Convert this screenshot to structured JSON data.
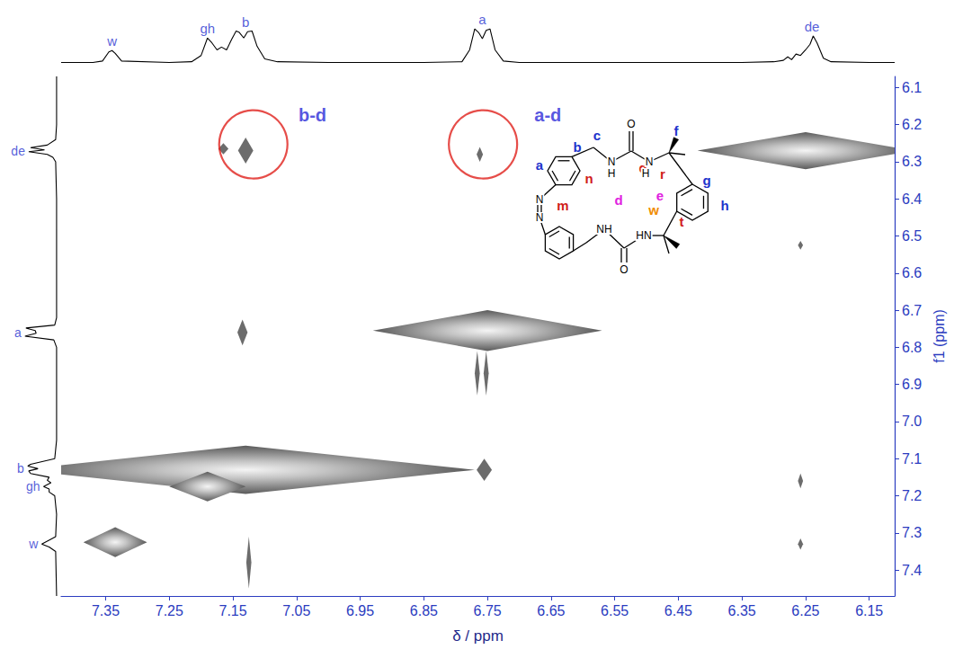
{
  "chart_data": {
    "type": "nmr2d",
    "x_label": "δ / ppm",
    "y_label": "f1 (ppm)",
    "xlim": [
      7.42,
      6.11
    ],
    "xticks": [
      7.35,
      7.25,
      7.15,
      7.05,
      6.95,
      6.85,
      6.75,
      6.65,
      6.55,
      6.45,
      6.35,
      6.25,
      6.15
    ],
    "ylim": [
      7.47,
      6.07
    ],
    "yticks": [
      6.1,
      6.2,
      6.3,
      6.4,
      6.5,
      6.6,
      6.7,
      6.8,
      6.9,
      {
        "value": 7,
        "label": "7.0"
      },
      7.1,
      7.2,
      7.3,
      7.4
    ],
    "grid": false,
    "peaks": {
      "x": [
        7.335,
        7.13,
        7.19,
        6.75,
        6.25,
        7.13,
        7.165,
        6.762,
        7.135,
        6.755,
        6.258,
        6.258,
        6.258,
        7.125,
        6.766,
        6.752
      ],
      "y": [
        7.325,
        7.13,
        7.175,
        6.755,
        6.27,
        6.27,
        6.265,
        6.28,
        6.76,
        7.13,
        6.525,
        7.16,
        7.33,
        7.38,
        6.87,
        6.87
      ],
      "x_width": [
        0.05,
        0.36,
        0.06,
        0.18,
        0.17,
        0.012,
        0.008,
        0.005,
        0.008,
        0.012,
        0.004,
        0.004,
        0.004,
        0.004,
        0.004,
        0.004
      ],
      "y_width": [
        0.04,
        0.065,
        0.04,
        0.055,
        0.05,
        0.035,
        0.015,
        0.02,
        0.035,
        0.03,
        0.012,
        0.02,
        0.015,
        0.07,
        0.06,
        0.06
      ]
    },
    "top_trace": {
      "x": [
        7.42,
        7.37,
        7.355,
        7.345,
        7.34,
        7.335,
        7.325,
        7.25,
        7.215,
        7.2,
        7.19,
        7.183,
        7.175,
        7.168,
        7.16,
        7.152,
        7.145,
        7.14,
        7.133,
        7.127,
        7.12,
        7.112,
        7.1,
        7.08,
        7.0,
        6.85,
        6.79,
        6.778,
        6.77,
        6.764,
        6.758,
        6.752,
        6.746,
        6.738,
        6.725,
        6.7,
        6.35,
        6.3,
        6.285,
        6.278,
        6.272,
        6.265,
        6.258,
        6.25,
        6.243,
        6.238,
        6.232,
        6.222,
        6.21,
        6.15,
        6.11
      ],
      "values": [
        0.02,
        0.02,
        0.04,
        0.17,
        0.19,
        0.15,
        0.04,
        0.02,
        0.03,
        0.12,
        0.37,
        0.3,
        0.2,
        0.24,
        0.2,
        0.35,
        0.47,
        0.45,
        0.37,
        0.46,
        0.47,
        0.25,
        0.07,
        0.03,
        0.02,
        0.02,
        0.03,
        0.2,
        0.5,
        0.45,
        0.36,
        0.48,
        0.5,
        0.2,
        0.04,
        0.02,
        0.02,
        0.03,
        0.05,
        0.1,
        0.06,
        0.14,
        0.12,
        0.2,
        0.28,
        0.4,
        0.3,
        0.08,
        0.03,
        0.02,
        0.02
      ],
      "intensity_lim": [
        0,
        0.85
      ]
    },
    "left_trace": {
      "y": [
        6.07,
        6.2,
        6.24,
        6.255,
        6.262,
        6.268,
        6.273,
        6.28,
        6.288,
        6.3,
        6.4,
        6.72,
        6.74,
        6.748,
        6.755,
        6.762,
        6.77,
        6.78,
        6.8,
        7.05,
        7.1,
        7.115,
        7.12,
        7.127,
        7.133,
        7.14,
        7.15,
        7.158,
        7.165,
        7.175,
        7.182,
        7.19,
        7.2,
        7.25,
        7.31,
        7.322,
        7.33,
        7.338,
        7.35,
        7.47
      ],
      "values": [
        0.02,
        0.02,
        0.03,
        0.12,
        0.3,
        0.15,
        0.32,
        0.12,
        0.06,
        0.03,
        0.02,
        0.02,
        0.04,
        0.35,
        0.25,
        0.24,
        0.36,
        0.05,
        0.02,
        0.02,
        0.04,
        0.3,
        0.33,
        0.22,
        0.32,
        0.3,
        0.1,
        0.12,
        0.08,
        0.16,
        0.1,
        0.1,
        0.04,
        0.02,
        0.03,
        0.12,
        0.18,
        0.1,
        0.03,
        0.02
      ],
      "intensity_lim": [
        0,
        0.6
      ]
    },
    "top_labels": [
      {
        "text": "w",
        "x": 7.34
      },
      {
        "text": "gh",
        "x": 7.19
      },
      {
        "text": "b",
        "x": 7.13
      },
      {
        "text": "a",
        "x": 6.758
      },
      {
        "text": "de",
        "x": 6.24
      }
    ],
    "left_labels": [
      {
        "text": "de",
        "y": 6.27
      },
      {
        "text": "a",
        "y": 6.76
      },
      {
        "text": "b",
        "y": 7.125
      },
      {
        "text": "gh",
        "y": 7.175
      },
      {
        "text": "w",
        "y": 7.33
      }
    ],
    "annotations": [
      {
        "text": "b-d",
        "x": 7.025,
        "y": 6.175
      },
      {
        "text": "a-d",
        "x": 6.655,
        "y": 6.175
      }
    ],
    "circles": [
      {
        "x": 7.118,
        "y": 6.253
      },
      {
        "x": 6.757,
        "y": 6.253
      }
    ],
    "structure_labels": [
      "a",
      "b",
      "c",
      "n",
      "m",
      "d",
      "e",
      "w",
      "q",
      "f",
      "r",
      "g",
      "h",
      "t",
      "O",
      "N",
      "H",
      "N",
      "H",
      "N",
      "N",
      "NH",
      "HN",
      "O"
    ]
  }
}
